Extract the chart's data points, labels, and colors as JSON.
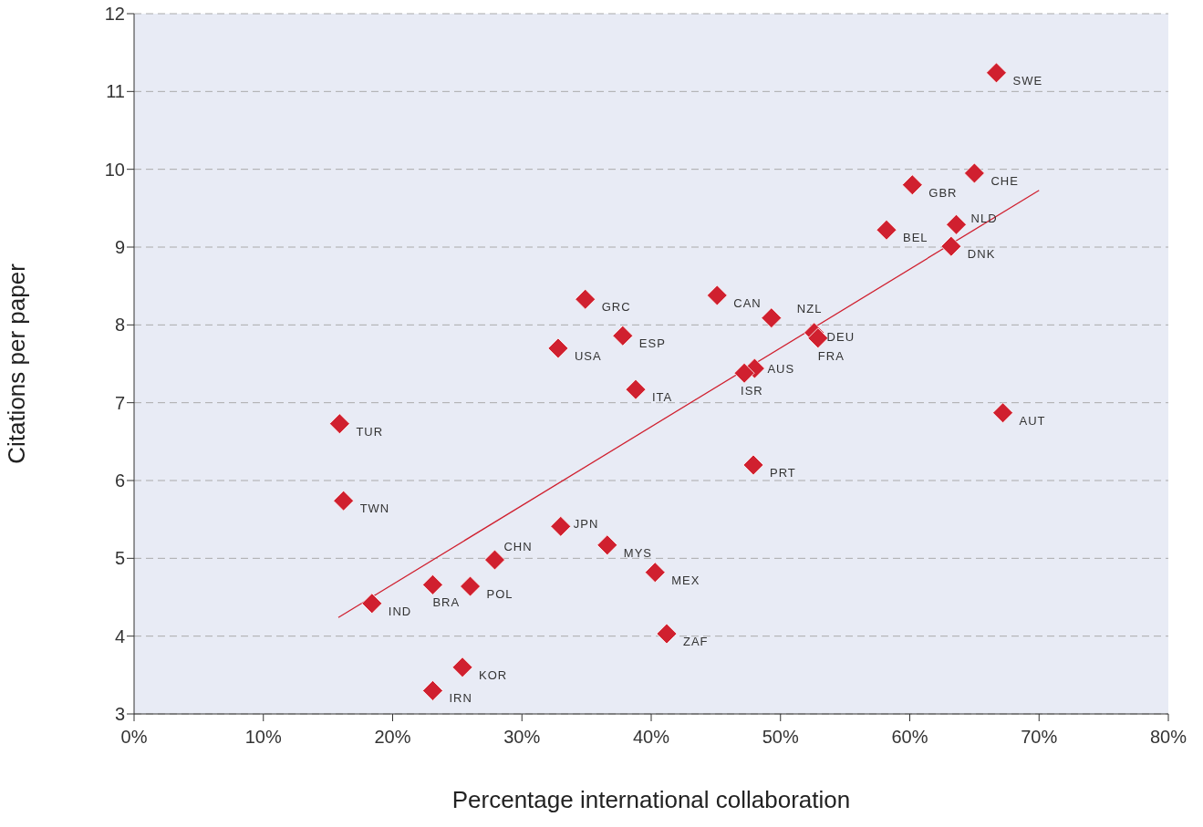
{
  "chart_data": {
    "type": "scatter",
    "xlabel": "Percentage international collaboration",
    "ylabel": "Citations per paper",
    "xlim": [
      0,
      80
    ],
    "xticks": [
      {
        "value": 0,
        "label": "0%"
      },
      {
        "value": 10,
        "label": "10%"
      },
      {
        "value": 20,
        "label": "20%"
      },
      {
        "value": 30,
        "label": "30%"
      },
      {
        "value": 40,
        "label": "40%"
      },
      {
        "value": 50,
        "label": "50%"
      },
      {
        "value": 60,
        "label": "60%"
      },
      {
        "value": 70,
        "label": "70%"
      },
      {
        "value": 80,
        "label": "80%"
      }
    ],
    "ylim": [
      3,
      12
    ],
    "yticks": [
      3,
      4,
      5,
      6,
      7,
      8,
      9,
      10,
      11,
      12
    ],
    "grid": "y",
    "marker": "diamond",
    "series": [
      {
        "color": "#d0202f",
        "x": [
          66.7,
          65.0,
          60.2,
          63.6,
          58.2,
          63.2,
          45.1,
          34.9,
          49.3,
          37.8,
          52.6,
          52.9,
          32.8,
          48.0,
          47.2,
          38.8,
          15.9,
          67.2,
          47.9,
          16.2,
          33.0,
          36.6,
          27.9,
          40.3,
          23.1,
          26.0,
          18.4,
          41.2,
          25.4,
          23.1
        ],
        "values": [
          11.24,
          9.95,
          9.8,
          9.29,
          9.22,
          9.01,
          8.38,
          8.33,
          8.09,
          7.86,
          7.9,
          7.83,
          7.7,
          7.44,
          7.38,
          7.17,
          6.73,
          6.87,
          6.2,
          5.74,
          5.41,
          5.17,
          4.98,
          4.82,
          4.66,
          4.64,
          4.42,
          4.03,
          3.6,
          3.3
        ]
      },
      {
        "type": "line",
        "color": "#d0202f",
        "marker": "none",
        "x": [
          15.8,
          70.0
        ],
        "values": [
          4.24,
          9.73
        ]
      }
    ],
    "annotations": [
      {
        "text": "SWE",
        "x": 66.7,
        "y": 11.24
      },
      {
        "text": "CHE",
        "x": 65.0,
        "y": 9.95
      },
      {
        "text": "GBR",
        "x": 60.2,
        "y": 9.8
      },
      {
        "text": "NLD",
        "x": 63.6,
        "y": 9.29
      },
      {
        "text": "BEL",
        "x": 58.2,
        "y": 9.22
      },
      {
        "text": "DNK",
        "x": 63.2,
        "y": 9.01
      },
      {
        "text": "CAN",
        "x": 45.1,
        "y": 8.38
      },
      {
        "text": "GRC",
        "x": 34.9,
        "y": 8.33
      },
      {
        "text": "NZL",
        "x": 49.3,
        "y": 8.09
      },
      {
        "text": "ESP",
        "x": 37.8,
        "y": 7.86
      },
      {
        "text": "DEU",
        "x": 52.6,
        "y": 7.9
      },
      {
        "text": "FRA",
        "x": 52.9,
        "y": 7.83
      },
      {
        "text": "USA",
        "x": 32.8,
        "y": 7.7
      },
      {
        "text": "AUS",
        "x": 48.0,
        "y": 7.44
      },
      {
        "text": "ISR",
        "x": 47.2,
        "y": 7.38
      },
      {
        "text": "ITA",
        "x": 38.8,
        "y": 7.17
      },
      {
        "text": "TUR",
        "x": 15.9,
        "y": 6.73
      },
      {
        "text": "AUT",
        "x": 67.2,
        "y": 6.87
      },
      {
        "text": "PRT",
        "x": 47.9,
        "y": 6.2
      },
      {
        "text": "TWN",
        "x": 16.2,
        "y": 5.74
      },
      {
        "text": "JPN",
        "x": 33.0,
        "y": 5.41
      },
      {
        "text": "MYS",
        "x": 36.6,
        "y": 5.17
      },
      {
        "text": "CHN",
        "x": 27.9,
        "y": 4.98
      },
      {
        "text": "MEX",
        "x": 40.3,
        "y": 4.82
      },
      {
        "text": "BRA",
        "x": 23.1,
        "y": 4.66
      },
      {
        "text": "POL",
        "x": 26.0,
        "y": 4.64
      },
      {
        "text": "IND",
        "x": 18.4,
        "y": 4.42
      },
      {
        "text": "ZAF",
        "x": 41.2,
        "y": 4.03
      },
      {
        "text": "KOR",
        "x": 25.4,
        "y": 3.6
      },
      {
        "text": "IRN",
        "x": 23.1,
        "y": 3.3
      }
    ]
  }
}
